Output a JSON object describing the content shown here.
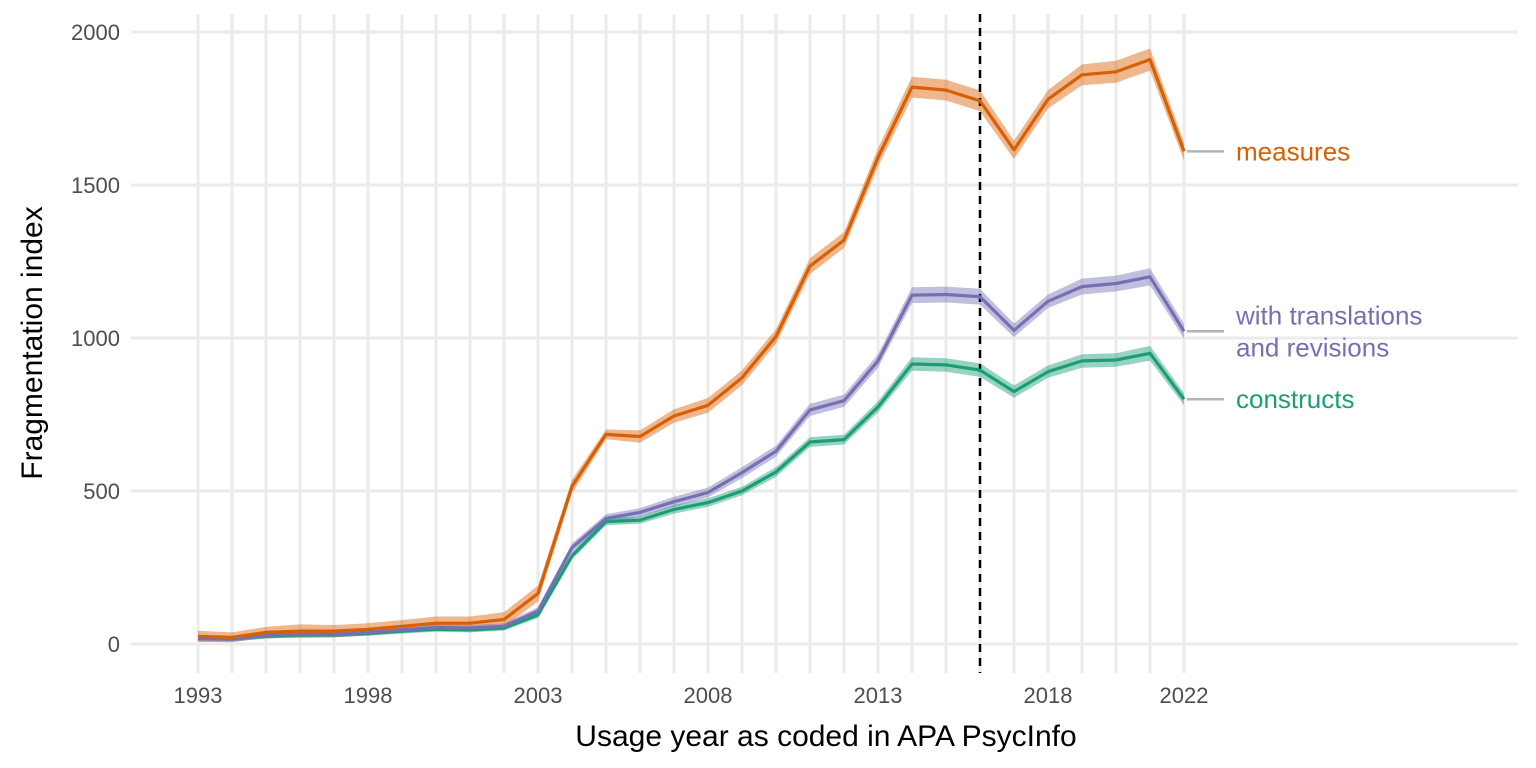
{
  "chart_data": {
    "type": "line",
    "xlabel": "Usage year as coded in APA PsycInfo",
    "ylabel": "Fragmentation index",
    "xlim": [
      1993,
      2022
    ],
    "ylim": [
      0,
      2000
    ],
    "x_ticks": [
      "1993",
      "1998",
      "2003",
      "2008",
      "2013",
      "2018",
      "2022"
    ],
    "y_ticks": [
      "0",
      "500",
      "1000",
      "1500",
      "2000"
    ],
    "grid": true,
    "reference_line": {
      "x": 2016,
      "style": "dashed"
    },
    "x": [
      1993,
      1994,
      1995,
      1996,
      1997,
      1998,
      1999,
      2000,
      2001,
      2002,
      2003,
      2004,
      2005,
      2006,
      2007,
      2008,
      2009,
      2010,
      2011,
      2012,
      2013,
      2014,
      2015,
      2016,
      2017,
      2018,
      2019,
      2020,
      2021,
      2022
    ],
    "series": [
      {
        "name": "measures",
        "label_lines": [
          "measures"
        ],
        "color": "#d95f02",
        "values": [
          25,
          22,
          38,
          42,
          42,
          48,
          58,
          68,
          68,
          80,
          165,
          515,
          685,
          678,
          745,
          780,
          870,
          1005,
          1235,
          1320,
          1590,
          1820,
          1810,
          1775,
          1615,
          1780,
          1860,
          1870,
          1910,
          1610
        ],
        "band": [
          18,
          16,
          18,
          22,
          20,
          20,
          20,
          22,
          22,
          24,
          26,
          22,
          16,
          20,
          22,
          24,
          24,
          24,
          26,
          26,
          30,
          34,
          34,
          34,
          30,
          30,
          34,
          36,
          36,
          30
        ]
      },
      {
        "name": "with translations and revisions",
        "label_lines": [
          "with translations",
          "and revisions"
        ],
        "color": "#7570b3",
        "values": [
          18,
          16,
          28,
          32,
          32,
          38,
          46,
          54,
          52,
          58,
          108,
          315,
          410,
          430,
          465,
          495,
          560,
          630,
          765,
          795,
          925,
          1140,
          1142,
          1135,
          1025,
          1120,
          1168,
          1178,
          1200,
          1022
        ],
        "band": [
          10,
          8,
          10,
          10,
          10,
          10,
          10,
          10,
          10,
          10,
          12,
          14,
          14,
          14,
          16,
          16,
          18,
          18,
          20,
          20,
          22,
          26,
          26,
          26,
          22,
          22,
          26,
          26,
          28,
          24
        ]
      },
      {
        "name": "constructs",
        "label_lines": [
          "constructs"
        ],
        "color": "#1b9e77",
        "values": [
          20,
          18,
          26,
          30,
          30,
          35,
          42,
          48,
          46,
          52,
          95,
          288,
          400,
          405,
          440,
          462,
          500,
          562,
          660,
          668,
          775,
          915,
          912,
          895,
          825,
          890,
          925,
          928,
          950,
          800
        ],
        "band": [
          8,
          8,
          8,
          8,
          8,
          8,
          8,
          8,
          8,
          8,
          10,
          12,
          12,
          12,
          14,
          14,
          14,
          16,
          16,
          16,
          18,
          22,
          22,
          22,
          20,
          20,
          22,
          22,
          24,
          20
        ]
      }
    ]
  }
}
